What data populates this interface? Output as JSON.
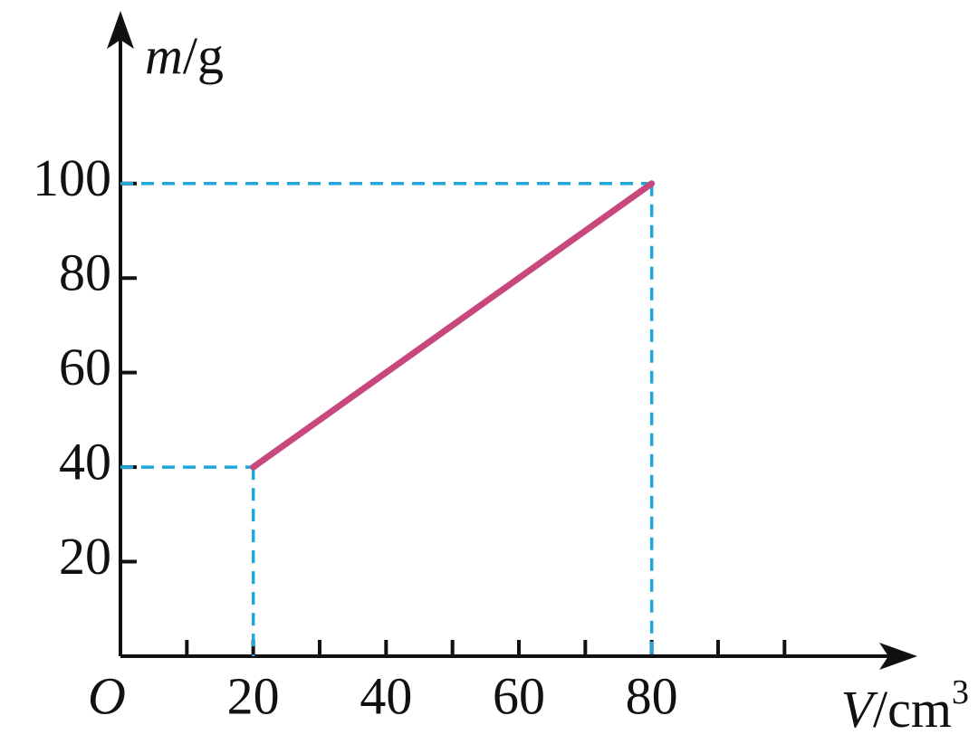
{
  "chart_data": {
    "type": "line",
    "x": [
      20,
      80
    ],
    "series": [
      {
        "color": "#c8487e",
        "values": [
          40,
          100
        ]
      }
    ],
    "xlim": [
      0,
      120
    ],
    "ylim": [
      0,
      135
    ],
    "xticks": [
      20,
      40,
      60,
      80
    ],
    "xminor_ticks": [
      10,
      30,
      50,
      70,
      90,
      100
    ],
    "yticks": [
      20,
      40,
      60,
      80,
      100
    ],
    "guide_color": "#1fa7dc",
    "origin_label": "O",
    "ylabel": [
      "m",
      "/g"
    ],
    "xlabel": [
      "V",
      "/cm",
      "3"
    ]
  }
}
